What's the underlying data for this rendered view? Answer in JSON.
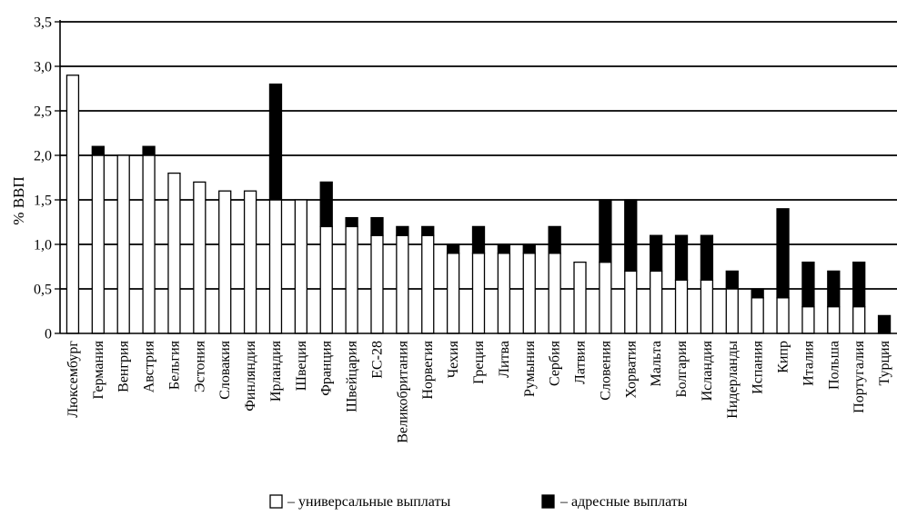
{
  "chart_data": {
    "type": "bar",
    "stacked": true,
    "title": "",
    "xlabel": "",
    "ylabel": "% ВВП",
    "ylim": [
      0,
      3.5
    ],
    "yticks": [
      "0",
      "0,5",
      "1,0",
      "1,5",
      "2,0",
      "2,5",
      "3,0",
      "3,5"
    ],
    "ytick_values": [
      0,
      0.5,
      1.0,
      1.5,
      2.0,
      2.5,
      3.0,
      3.5
    ],
    "grid": true,
    "categories": [
      "Люксембург",
      "Германия",
      "Венгрия",
      "Австрия",
      "Бельгия",
      "Эстония",
      "Словакия",
      "Финляндия",
      "Ирландия",
      "Швеция",
      "Франция",
      "Швейцария",
      "ЕС-28",
      "Великобритания",
      "Норвегия",
      "Чехия",
      "Греция",
      "Литва",
      "Румыния",
      "Сербия",
      "Латвия",
      "Словения",
      "Хорватия",
      "Мальта",
      "Болгария",
      "Исландия",
      "Нидерланды",
      "Испания",
      "Кипр",
      "Италия",
      "Польша",
      "Португалия",
      "Турция"
    ],
    "series": [
      {
        "name": "– универсальные выплаты",
        "color": "#ffffff",
        "values": [
          2.9,
          2.0,
          2.0,
          2.0,
          1.8,
          1.7,
          1.6,
          1.6,
          1.5,
          1.5,
          1.2,
          1.2,
          1.1,
          1.1,
          1.1,
          0.9,
          0.9,
          0.9,
          0.9,
          0.9,
          0.8,
          0.8,
          0.7,
          0.7,
          0.6,
          0.6,
          0.5,
          0.4,
          0.4,
          0.3,
          0.3,
          0.3,
          0.0
        ]
      },
      {
        "name": "– адресные выплаты",
        "color": "#000000",
        "values": [
          0.0,
          0.1,
          0.0,
          0.1,
          0.0,
          0.0,
          0.0,
          0.0,
          1.3,
          0.0,
          0.5,
          0.1,
          0.2,
          0.1,
          0.1,
          0.1,
          0.3,
          0.1,
          0.1,
          0.3,
          0.0,
          0.7,
          0.8,
          0.4,
          0.5,
          0.5,
          0.2,
          0.1,
          1.0,
          0.5,
          0.4,
          0.5,
          0.2
        ]
      }
    ],
    "legend": {
      "position": "bottom-center"
    }
  }
}
